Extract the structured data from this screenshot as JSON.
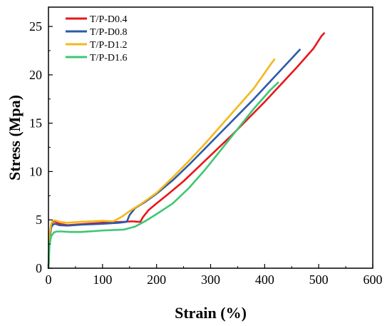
{
  "chart_data": {
    "type": "line",
    "xlabel": "Strain (%)",
    "ylabel": "Stress (Mpa)",
    "xlim": [
      0,
      600
    ],
    "ylim": [
      0,
      27
    ],
    "x_ticks": [
      "0",
      "100",
      "200",
      "300",
      "400",
      "500",
      "600"
    ],
    "y_ticks": [
      "0",
      "5",
      "10",
      "15",
      "20",
      "25"
    ],
    "grid": false,
    "legend_position": "top-left",
    "series": [
      {
        "name": "T/P-D0.4",
        "color": "#e8171b",
        "x": [
          0,
          2,
          5,
          8,
          12,
          20,
          35,
          60,
          100,
          140,
          155,
          165,
          170,
          175,
          185,
          200,
          220,
          250,
          280,
          310,
          340,
          370,
          400,
          430,
          460,
          490,
          505,
          510
        ],
        "y": [
          0,
          3.2,
          4.4,
          4.8,
          4.85,
          4.6,
          4.45,
          4.55,
          4.7,
          4.8,
          4.85,
          4.8,
          4.8,
          5.3,
          6.0,
          6.7,
          7.6,
          9.0,
          10.6,
          12.2,
          13.8,
          15.5,
          17.2,
          19.0,
          20.8,
          22.7,
          24.0,
          24.3
        ]
      },
      {
        "name": "T/P-D0.8",
        "color": "#2b5aa8",
        "x": [
          0,
          2,
          5,
          8,
          12,
          20,
          35,
          60,
          100,
          130,
          145,
          150,
          160,
          180,
          200,
          230,
          260,
          290,
          320,
          350,
          380,
          410,
          440,
          460,
          465
        ],
        "y": [
          0,
          3.0,
          4.2,
          4.5,
          4.6,
          4.45,
          4.4,
          4.5,
          4.6,
          4.7,
          4.8,
          5.5,
          6.2,
          6.9,
          7.7,
          9.1,
          10.7,
          12.4,
          14.1,
          15.8,
          17.5,
          19.3,
          21.1,
          22.3,
          22.6
        ]
      },
      {
        "name": "T/P-D1.2",
        "color": "#f4b81c",
        "x": [
          0,
          2,
          5,
          8,
          12,
          20,
          35,
          60,
          100,
          120,
          135,
          150,
          170,
          200,
          230,
          260,
          290,
          320,
          350,
          380,
          410,
          418
        ],
        "y": [
          0,
          3.5,
          4.6,
          4.9,
          4.95,
          4.8,
          4.7,
          4.8,
          4.9,
          4.85,
          5.3,
          5.9,
          6.6,
          7.8,
          9.4,
          11.1,
          12.9,
          14.8,
          16.7,
          18.6,
          21.0,
          21.6
        ]
      },
      {
        "name": "T/P-D1.6",
        "color": "#3ec774",
        "x": [
          0,
          2,
          5,
          10,
          15,
          25,
          40,
          60,
          100,
          140,
          160,
          180,
          200,
          230,
          260,
          290,
          320,
          350,
          380,
          410,
          425
        ],
        "y": [
          0,
          2.4,
          3.3,
          3.7,
          3.8,
          3.8,
          3.75,
          3.75,
          3.9,
          4.0,
          4.3,
          4.9,
          5.6,
          6.7,
          8.3,
          10.2,
          12.3,
          14.4,
          16.5,
          18.4,
          19.2
        ]
      }
    ]
  }
}
